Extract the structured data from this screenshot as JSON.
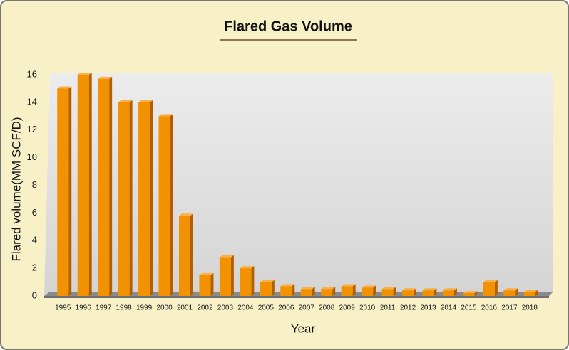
{
  "chart_data": {
    "type": "bar",
    "title": "Flared Gas Volume",
    "x_label": "Year",
    "y_label": "Flared volume(MM SCF/D)",
    "categories": [
      "1995",
      "1996",
      "1997",
      "1998",
      "1999",
      "2000",
      "2001",
      "2002",
      "2003",
      "2004",
      "2005",
      "2006",
      "2007",
      "2008",
      "2009",
      "2010",
      "2011",
      "2012",
      "2013",
      "2014",
      "2015",
      "2016",
      "2017",
      "2018"
    ],
    "values": [
      15,
      16,
      15.7,
      14,
      14,
      13,
      5.8,
      1.5,
      2.8,
      2.0,
      1.0,
      0.7,
      0.5,
      0.5,
      0.7,
      0.6,
      0.5,
      0.4,
      0.4,
      0.4,
      0.2,
      1.0,
      0.4,
      0.3
    ],
    "color": "#f39200",
    "ylim": [
      0,
      16
    ],
    "yticks": [
      0,
      2,
      4,
      6,
      8,
      10,
      12,
      14,
      16
    ],
    "grid": false
  }
}
